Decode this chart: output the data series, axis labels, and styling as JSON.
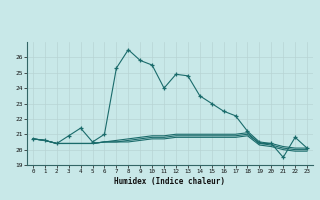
{
  "xlabel": "Humidex (Indice chaleur)",
  "bg_color": "#c8e8e8",
  "grid_color": "#b8d4d4",
  "line_color": "#1a6b6b",
  "xlim": [
    -0.5,
    23.5
  ],
  "ylim": [
    19,
    27
  ],
  "yticks": [
    19,
    20,
    21,
    22,
    23,
    24,
    25,
    26
  ],
  "xticks": [
    0,
    1,
    2,
    3,
    4,
    5,
    6,
    7,
    8,
    9,
    10,
    11,
    12,
    13,
    14,
    15,
    16,
    17,
    18,
    19,
    20,
    21,
    22,
    23
  ],
  "series1": [
    20.7,
    20.6,
    20.4,
    20.9,
    21.4,
    20.5,
    21.0,
    25.3,
    26.5,
    25.8,
    25.5,
    24.0,
    24.9,
    24.8,
    23.5,
    23.0,
    22.5,
    22.2,
    21.2,
    20.5,
    20.4,
    19.5,
    20.8,
    20.1
  ],
  "series2": [
    20.7,
    20.6,
    20.4,
    20.4,
    20.4,
    20.4,
    20.5,
    20.6,
    20.7,
    20.8,
    20.9,
    20.9,
    21.0,
    21.0,
    21.0,
    21.0,
    21.0,
    21.0,
    21.1,
    20.4,
    20.4,
    20.2,
    20.1,
    20.1
  ],
  "series3": [
    20.7,
    20.6,
    20.4,
    20.4,
    20.4,
    20.4,
    20.5,
    20.5,
    20.6,
    20.7,
    20.8,
    20.8,
    20.9,
    20.9,
    20.9,
    20.9,
    20.9,
    20.9,
    21.0,
    20.4,
    20.3,
    20.1,
    20.0,
    20.0
  ],
  "series4": [
    20.7,
    20.6,
    20.4,
    20.4,
    20.4,
    20.4,
    20.5,
    20.5,
    20.5,
    20.6,
    20.7,
    20.7,
    20.8,
    20.8,
    20.8,
    20.8,
    20.8,
    20.8,
    20.9,
    20.3,
    20.2,
    20.0,
    19.9,
    19.9
  ]
}
